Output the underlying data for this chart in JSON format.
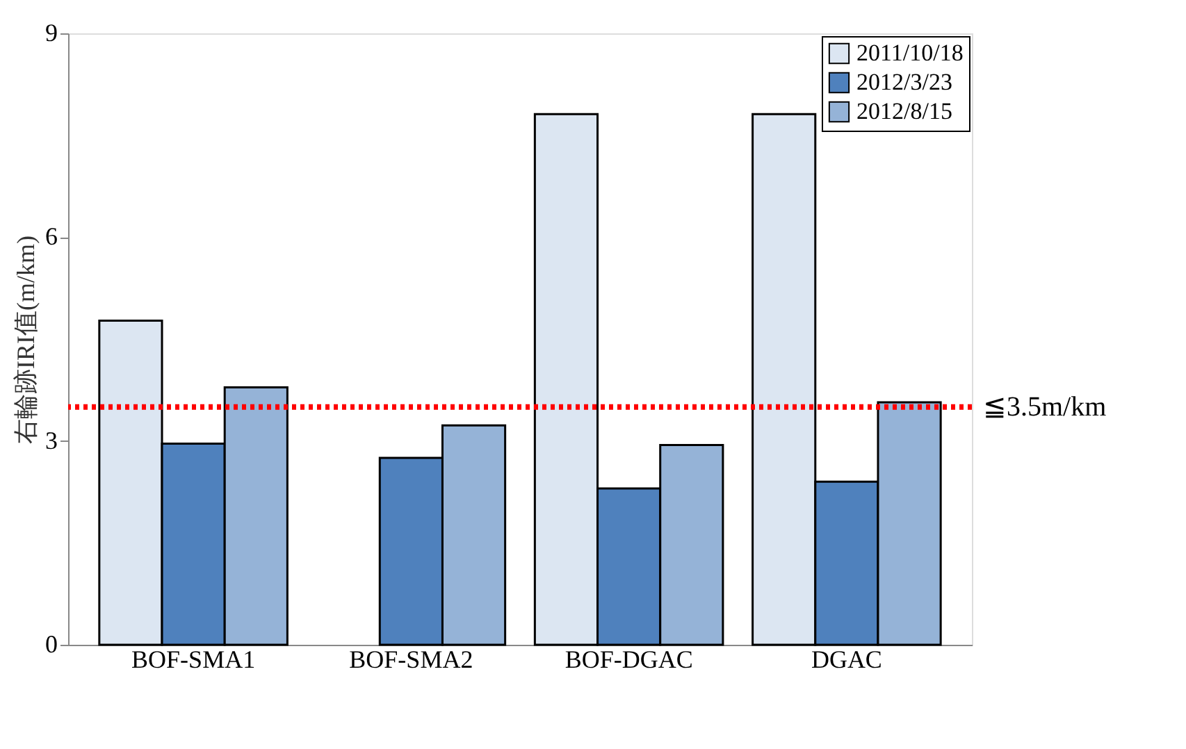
{
  "chart_data": {
    "type": "bar",
    "ylabel": "右輪跡IRI值(m/km)",
    "categories": [
      "BOF-SMA1",
      "BOF-SMA2",
      "BOF-DGAC",
      "DGAC"
    ],
    "series": [
      {
        "name": "2011/10/18",
        "color": "#dce6f2",
        "values": [
          4.77,
          null,
          7.81,
          7.81
        ]
      },
      {
        "name": "2012/3/23",
        "color": "#4f81bd",
        "values": [
          2.96,
          2.75,
          2.3,
          2.4
        ]
      },
      {
        "name": "2012/8/15",
        "color": "#95b3d7",
        "values": [
          3.79,
          3.23,
          2.94,
          3.57
        ]
      }
    ],
    "ylim": [
      0,
      9
    ],
    "yticks": [
      0,
      3,
      6,
      9
    ],
    "grid": false,
    "legend": "top right",
    "ref_lines": [
      {
        "axis": "y",
        "value": 3.5,
        "label": "≦3.5m/km",
        "color": "#ff0000",
        "line_style": "dotted"
      }
    ]
  }
}
